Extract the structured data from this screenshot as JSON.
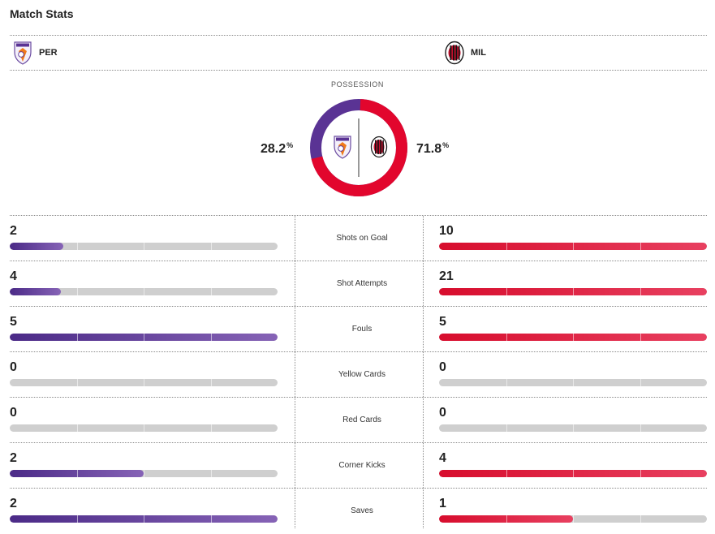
{
  "header": {
    "title": "Match Stats"
  },
  "teams": {
    "home": {
      "abbr": "PER",
      "crest": "perth-glory-crest-icon",
      "color": "#5a3394"
    },
    "away": {
      "abbr": "MIL",
      "crest": "ac-milan-crest-icon",
      "color": "#e2062d"
    }
  },
  "possession": {
    "label": "POSSESSION",
    "home_value": "28.2",
    "away_value": "71.8",
    "unit": "%",
    "home_fraction": 0.282,
    "away_fraction": 0.718
  },
  "stats": [
    {
      "label": "Shots on Goal",
      "home": "2",
      "away": "10",
      "home_fill": 0.2,
      "away_fill": 1.0
    },
    {
      "label": "Shot Attempts",
      "home": "4",
      "away": "21",
      "home_fill": 0.19,
      "away_fill": 1.0
    },
    {
      "label": "Fouls",
      "home": "5",
      "away": "5",
      "home_fill": 1.0,
      "away_fill": 1.0
    },
    {
      "label": "Yellow Cards",
      "home": "0",
      "away": "0",
      "home_fill": 0.0,
      "away_fill": 0.0
    },
    {
      "label": "Red Cards",
      "home": "0",
      "away": "0",
      "home_fill": 0.0,
      "away_fill": 0.0
    },
    {
      "label": "Corner Kicks",
      "home": "2",
      "away": "4",
      "home_fill": 0.5,
      "away_fill": 1.0
    },
    {
      "label": "Saves",
      "home": "2",
      "away": "1",
      "home_fill": 1.0,
      "away_fill": 0.5
    }
  ]
}
